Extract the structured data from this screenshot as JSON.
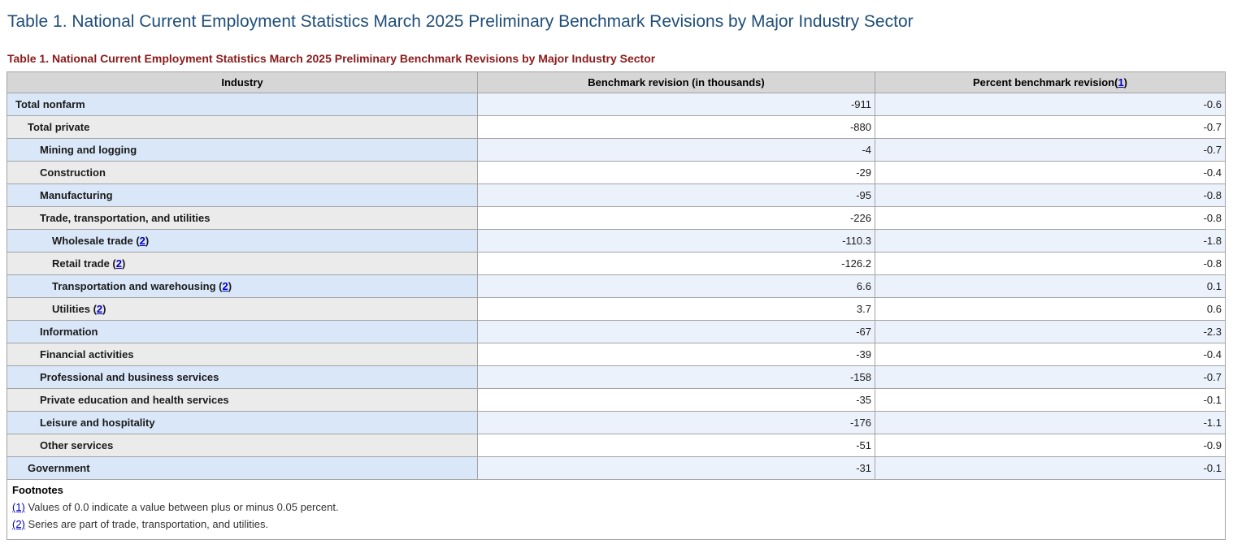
{
  "page": {
    "title": "Table 1. National Current Employment Statistics March 2025 Preliminary Benchmark Revisions by Major Industry Sector",
    "subtitle": "Table 1. National Current Employment Statistics March 2025 Preliminary Benchmark Revisions by Major Industry Sector"
  },
  "table": {
    "columns": [
      {
        "label": "Industry"
      },
      {
        "label": "Benchmark revision (in thousands)"
      },
      {
        "prefix": "Percent benchmark revision(",
        "link": "1",
        "suffix": ")"
      }
    ],
    "rows": [
      {
        "industry": "Total nonfarm",
        "indent": 0,
        "benchmark": "-911",
        "percent": "-0.6"
      },
      {
        "industry": "Total private",
        "indent": 1,
        "benchmark": "-880",
        "percent": "-0.7"
      },
      {
        "industry": "Mining and logging",
        "indent": 2,
        "benchmark": "-4",
        "percent": "-0.7"
      },
      {
        "industry": "Construction",
        "indent": 2,
        "benchmark": "-29",
        "percent": "-0.4"
      },
      {
        "industry": "Manufacturing",
        "indent": 2,
        "benchmark": "-95",
        "percent": "-0.8"
      },
      {
        "industry": "Trade, transportation, and utilities",
        "indent": 2,
        "benchmark": "-226",
        "percent": "-0.8"
      },
      {
        "industry": "Wholesale trade",
        "indent": 3,
        "footnote_link": "2",
        "benchmark": "-110.3",
        "percent": "-1.8"
      },
      {
        "industry": "Retail trade",
        "indent": 3,
        "footnote_link": "2",
        "benchmark": "-126.2",
        "percent": "-0.8"
      },
      {
        "industry": "Transportation and warehousing",
        "indent": 3,
        "footnote_link": "2",
        "benchmark": "6.6",
        "percent": "0.1"
      },
      {
        "industry": "Utilities",
        "indent": 3,
        "footnote_link": "2",
        "benchmark": "3.7",
        "percent": "0.6"
      },
      {
        "industry": "Information",
        "indent": 2,
        "benchmark": "-67",
        "percent": "-2.3"
      },
      {
        "industry": "Financial activities",
        "indent": 2,
        "benchmark": "-39",
        "percent": "-0.4"
      },
      {
        "industry": "Professional and business services",
        "indent": 2,
        "benchmark": "-158",
        "percent": "-0.7"
      },
      {
        "industry": "Private education and health services",
        "indent": 2,
        "benchmark": "-35",
        "percent": "-0.1"
      },
      {
        "industry": "Leisure and hospitality",
        "indent": 2,
        "benchmark": "-176",
        "percent": "-1.1"
      },
      {
        "industry": "Other services",
        "indent": 2,
        "benchmark": "-51",
        "percent": "-0.9"
      },
      {
        "industry": "Government",
        "indent": 1,
        "benchmark": "-31",
        "percent": "-0.1"
      }
    ]
  },
  "footnotes": {
    "heading": "Footnotes",
    "items": [
      {
        "link": "(1)",
        "text": "Values of 0.0 indicate a value between plus or minus 0.05 percent."
      },
      {
        "link": "(2)",
        "text": "Series are part of trade, transportation, and utilities."
      }
    ]
  },
  "colors": {
    "title": "#1f4e79",
    "subtitle": "#8b1a1a",
    "header_bg": "#d6d6d6",
    "row_blue_industry": "#d9e7f8",
    "row_blue_value": "#ecf2fc",
    "row_gray_industry": "#ebebeb",
    "row_gray_value": "#ffffff",
    "border": "#a3a3a3",
    "link": "#0000cc"
  }
}
